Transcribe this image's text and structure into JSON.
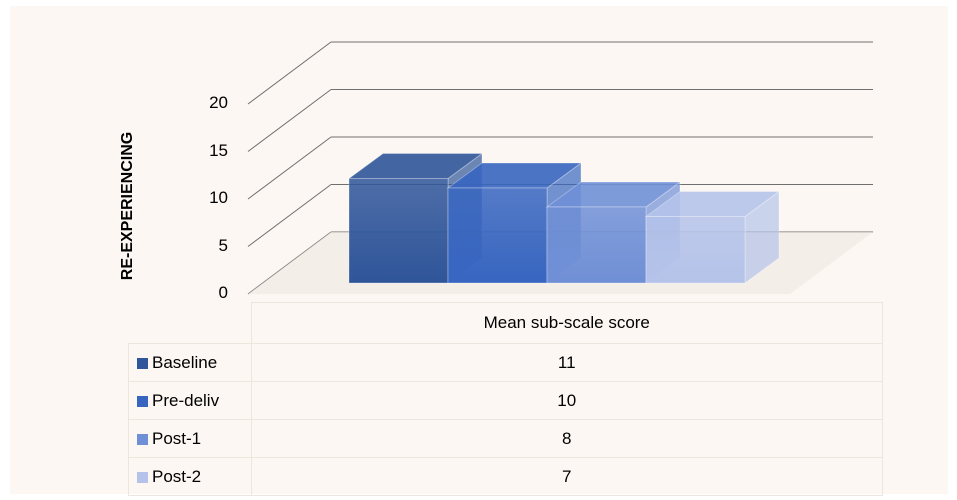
{
  "chart_data": {
    "type": "bar",
    "ylabel": "RE-EXPERIENCING",
    "categories": [
      "Mean sub-scale score"
    ],
    "series": [
      {
        "name": "Baseline",
        "values": [
          11
        ],
        "color": "#2f559a"
      },
      {
        "name": "Pre-deliv",
        "values": [
          10
        ],
        "color": "#3765c0"
      },
      {
        "name": "Post-1",
        "values": [
          8
        ],
        "color": "#6f8fd6"
      },
      {
        "name": "Post-2",
        "values": [
          7
        ],
        "color": "#b5c3ea"
      }
    ],
    "ylim": [
      0,
      20
    ],
    "yticks": [
      "0",
      "5",
      "10",
      "15",
      "20"
    ],
    "grid": true,
    "legend": "data-table-below",
    "style": "3d-column"
  }
}
